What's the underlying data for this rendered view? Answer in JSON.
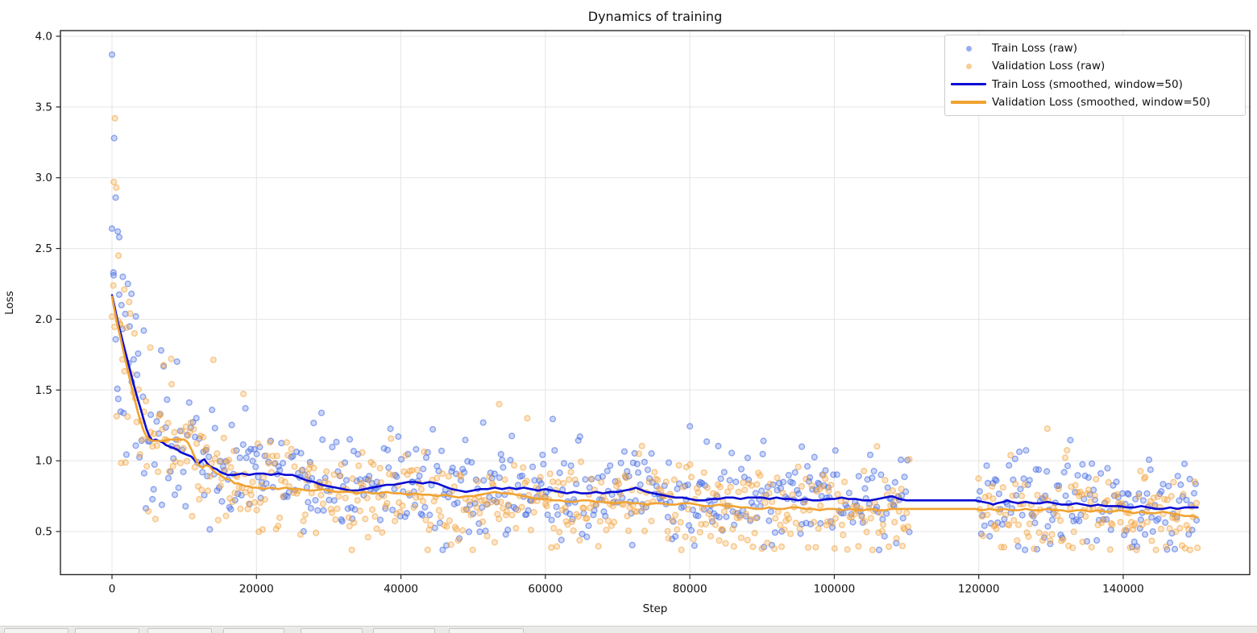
{
  "chart_data": {
    "type": "scatter",
    "title": "Dynamics of training",
    "xlabel": "Step",
    "ylabel": "Loss",
    "xlim": [
      -7150,
      157500
    ],
    "ylim": [
      0.19,
      4.04
    ],
    "x_ticks": [
      0,
      20000,
      40000,
      60000,
      80000,
      100000,
      120000,
      140000
    ],
    "y_ticks": [
      0.5,
      1.0,
      1.5,
      2.0,
      2.5,
      3.0,
      3.5,
      4.0
    ],
    "grid": true,
    "grid_color": "#e5e5e5",
    "axis_color": "#262626",
    "legend_position": "upper right",
    "data_gap_steps": [
      110500,
      119800
    ],
    "step_range": [
      0,
      150300
    ],
    "series": [
      {
        "name": "Train Loss (raw)",
        "type": "scatter",
        "color": "#4169e1",
        "alpha": 0.45,
        "marker": "circle",
        "envelope": "train_smoothed",
        "generator": {
          "seed": 42,
          "step_spacing": 215,
          "spread_base": 0.155,
          "spread_extra": 0.32,
          "spread_tau": 6500,
          "outlier_prob": 0.05,
          "outlier_scale": 0.4
        },
        "outlier_points": [
          [
            0,
            3.87
          ],
          [
            300,
            3.28
          ],
          [
            500,
            2.86
          ],
          [
            800,
            2.62
          ],
          [
            1000,
            2.58
          ],
          [
            200,
            2.33
          ],
          [
            1500,
            2.3
          ],
          [
            2200,
            2.25
          ],
          [
            2700,
            2.18
          ],
          [
            1300,
            2.1
          ],
          [
            3300,
            2.02
          ],
          [
            4400,
            1.92
          ],
          [
            6800,
            1.78
          ],
          [
            9000,
            1.7
          ],
          [
            51400,
            1.27
          ],
          [
            90200,
            1.14
          ],
          [
            95500,
            1.1
          ]
        ]
      },
      {
        "name": "Validation Loss (raw)",
        "type": "scatter",
        "color": "#f3a33c",
        "alpha": 0.45,
        "marker": "circle",
        "envelope": "valid_smoothed",
        "generator": {
          "seed": 1337,
          "step_spacing": 215,
          "spread_base": 0.155,
          "spread_extra": 0.32,
          "spread_tau": 6500,
          "outlier_prob": 0.05,
          "outlier_scale": 0.4
        },
        "outlier_points": [
          [
            400,
            3.42
          ],
          [
            250,
            2.97
          ],
          [
            600,
            2.93
          ],
          [
            900,
            2.45
          ],
          [
            1700,
            2.21
          ],
          [
            2500,
            2.04
          ],
          [
            1150,
            1.96
          ],
          [
            3100,
            1.9
          ],
          [
            5300,
            1.8
          ],
          [
            8200,
            1.72
          ],
          [
            53600,
            1.4
          ],
          [
            57500,
            1.3
          ]
        ]
      },
      {
        "name": "Train Loss (smoothed, window=50)",
        "type": "line",
        "color": "#0b0bd3",
        "width": 2.6,
        "key": "train_smoothed"
      },
      {
        "name": "Validation Loss (smoothed, window=50)",
        "type": "line",
        "color": "#f0a332",
        "width": 2.6,
        "key": "valid_smoothed"
      }
    ],
    "train_smoothed": [
      [
        0,
        2.17
      ],
      [
        400,
        2.08
      ],
      [
        800,
        1.98
      ],
      [
        1200,
        1.9
      ],
      [
        1600,
        1.82
      ],
      [
        2000,
        1.74
      ],
      [
        2400,
        1.66
      ],
      [
        2800,
        1.58
      ],
      [
        3200,
        1.5
      ],
      [
        3600,
        1.43
      ],
      [
        4000,
        1.36
      ],
      [
        4400,
        1.29
      ],
      [
        4800,
        1.22
      ],
      [
        5200,
        1.17
      ],
      [
        5600,
        1.14
      ],
      [
        6000,
        1.15
      ],
      [
        6500,
        1.14
      ],
      [
        7000,
        1.13
      ],
      [
        7500,
        1.11
      ],
      [
        8000,
        1.1
      ],
      [
        8500,
        1.09
      ],
      [
        9000,
        1.08
      ],
      [
        9500,
        1.06
      ],
      [
        10000,
        1.05
      ],
      [
        10500,
        1.04
      ],
      [
        11000,
        1.03
      ],
      [
        11500,
        1.0
      ],
      [
        12000,
        0.98
      ],
      [
        12400,
        1.0
      ],
      [
        12800,
        1.01
      ],
      [
        13200,
        0.98
      ],
      [
        13600,
        0.96
      ],
      [
        14000,
        0.95
      ],
      [
        14500,
        0.94
      ],
      [
        15000,
        0.92
      ],
      [
        15500,
        0.91
      ],
      [
        16000,
        0.9
      ],
      [
        17000,
        0.9
      ],
      [
        18000,
        0.91
      ],
      [
        19000,
        0.9
      ],
      [
        20000,
        0.91
      ],
      [
        21000,
        0.91
      ],
      [
        22000,
        0.9
      ],
      [
        23000,
        0.91
      ],
      [
        24000,
        0.9
      ],
      [
        25000,
        0.9
      ],
      [
        26000,
        0.88
      ],
      [
        27000,
        0.86
      ],
      [
        28000,
        0.85
      ],
      [
        29000,
        0.83
      ],
      [
        30000,
        0.82
      ],
      [
        31000,
        0.81
      ],
      [
        32000,
        0.8
      ],
      [
        33000,
        0.79
      ],
      [
        34000,
        0.79
      ],
      [
        35000,
        0.8
      ],
      [
        36000,
        0.81
      ],
      [
        37000,
        0.82
      ],
      [
        38000,
        0.83
      ],
      [
        39000,
        0.83
      ],
      [
        40000,
        0.84
      ],
      [
        41000,
        0.85
      ],
      [
        42000,
        0.85
      ],
      [
        43000,
        0.84
      ],
      [
        44000,
        0.85
      ],
      [
        45000,
        0.84
      ],
      [
        46000,
        0.82
      ],
      [
        47000,
        0.8
      ],
      [
        48000,
        0.79
      ],
      [
        49000,
        0.78
      ],
      [
        50000,
        0.79
      ],
      [
        51000,
        0.8
      ],
      [
        52000,
        0.8
      ],
      [
        53000,
        0.81
      ],
      [
        54000,
        0.8
      ],
      [
        55000,
        0.81
      ],
      [
        56000,
        0.8
      ],
      [
        57000,
        0.81
      ],
      [
        58000,
        0.8
      ],
      [
        59000,
        0.79
      ],
      [
        60000,
        0.8
      ],
      [
        61000,
        0.79
      ],
      [
        62000,
        0.78
      ],
      [
        63000,
        0.77
      ],
      [
        64000,
        0.78
      ],
      [
        65000,
        0.77
      ],
      [
        66000,
        0.77
      ],
      [
        67000,
        0.78
      ],
      [
        68000,
        0.77
      ],
      [
        69000,
        0.78
      ],
      [
        70000,
        0.78
      ],
      [
        71000,
        0.79
      ],
      [
        72000,
        0.8
      ],
      [
        72500,
        0.81
      ],
      [
        73000,
        0.8
      ],
      [
        74000,
        0.78
      ],
      [
        75000,
        0.77
      ],
      [
        76000,
        0.76
      ],
      [
        77000,
        0.75
      ],
      [
        78000,
        0.74
      ],
      [
        79000,
        0.74
      ],
      [
        80000,
        0.73
      ],
      [
        81000,
        0.72
      ],
      [
        82000,
        0.72
      ],
      [
        83000,
        0.73
      ],
      [
        84000,
        0.73
      ],
      [
        85000,
        0.74
      ],
      [
        86000,
        0.74
      ],
      [
        87000,
        0.73
      ],
      [
        88000,
        0.74
      ],
      [
        89000,
        0.74
      ],
      [
        90000,
        0.74
      ],
      [
        91000,
        0.73
      ],
      [
        92000,
        0.74
      ],
      [
        93000,
        0.73
      ],
      [
        94000,
        0.73
      ],
      [
        95000,
        0.72
      ],
      [
        96000,
        0.73
      ],
      [
        97000,
        0.72
      ],
      [
        98000,
        0.72
      ],
      [
        99000,
        0.73
      ],
      [
        100000,
        0.73
      ],
      [
        101000,
        0.74
      ],
      [
        102000,
        0.73
      ],
      [
        103000,
        0.73
      ],
      [
        104000,
        0.72
      ],
      [
        105000,
        0.72
      ],
      [
        106000,
        0.73
      ],
      [
        107000,
        0.74
      ],
      [
        108000,
        0.75
      ],
      [
        108500,
        0.74
      ],
      [
        109000,
        0.73
      ],
      [
        110000,
        0.72
      ],
      [
        119500,
        0.72
      ],
      [
        120500,
        0.71
      ],
      [
        121500,
        0.7
      ],
      [
        122000,
        0.69
      ],
      [
        122500,
        0.7
      ],
      [
        123500,
        0.71
      ],
      [
        124000,
        0.72
      ],
      [
        124500,
        0.71
      ],
      [
        125500,
        0.7
      ],
      [
        126500,
        0.71
      ],
      [
        127500,
        0.7
      ],
      [
        128500,
        0.7
      ],
      [
        129500,
        0.71
      ],
      [
        130500,
        0.7
      ],
      [
        131500,
        0.69
      ],
      [
        132500,
        0.69
      ],
      [
        133500,
        0.7
      ],
      [
        134500,
        0.69
      ],
      [
        135500,
        0.68
      ],
      [
        136500,
        0.69
      ],
      [
        137500,
        0.68
      ],
      [
        138500,
        0.68
      ],
      [
        139500,
        0.68
      ],
      [
        140500,
        0.67
      ],
      [
        141500,
        0.67
      ],
      [
        142500,
        0.68
      ],
      [
        143500,
        0.67
      ],
      [
        144500,
        0.66
      ],
      [
        145500,
        0.66
      ],
      [
        146500,
        0.67
      ],
      [
        147500,
        0.66
      ],
      [
        148500,
        0.67
      ],
      [
        149500,
        0.67
      ],
      [
        150300,
        0.67
      ]
    ],
    "valid_smoothed": [
      [
        0,
        2.16
      ],
      [
        400,
        2.05
      ],
      [
        800,
        1.95
      ],
      [
        1200,
        1.86
      ],
      [
        1600,
        1.77
      ],
      [
        2000,
        1.68
      ],
      [
        2400,
        1.59
      ],
      [
        2800,
        1.5
      ],
      [
        3200,
        1.42
      ],
      [
        3600,
        1.34
      ],
      [
        4000,
        1.27
      ],
      [
        4400,
        1.21
      ],
      [
        4800,
        1.17
      ],
      [
        5200,
        1.15
      ],
      [
        5600,
        1.14
      ],
      [
        6000,
        1.14
      ],
      [
        7000,
        1.14
      ],
      [
        8000,
        1.15
      ],
      [
        9000,
        1.15
      ],
      [
        10000,
        1.15
      ],
      [
        10500,
        1.13
      ],
      [
        11000,
        1.08
      ],
      [
        11500,
        1.02
      ],
      [
        12000,
        0.97
      ],
      [
        12500,
        0.95
      ],
      [
        13000,
        0.97
      ],
      [
        13500,
        0.96
      ],
      [
        14000,
        0.93
      ],
      [
        14500,
        0.91
      ],
      [
        15000,
        0.9
      ],
      [
        15500,
        0.88
      ],
      [
        16000,
        0.87
      ],
      [
        16500,
        0.86
      ],
      [
        17000,
        0.84
      ],
      [
        17500,
        0.84
      ],
      [
        18000,
        0.83
      ],
      [
        18500,
        0.82
      ],
      [
        19000,
        0.82
      ],
      [
        19500,
        0.81
      ],
      [
        20000,
        0.81
      ],
      [
        21000,
        0.8
      ],
      [
        22000,
        0.81
      ],
      [
        23000,
        0.8
      ],
      [
        24000,
        0.81
      ],
      [
        25000,
        0.8
      ],
      [
        26000,
        0.8
      ],
      [
        27000,
        0.79
      ],
      [
        28000,
        0.79
      ],
      [
        29000,
        0.8
      ],
      [
        30000,
        0.79
      ],
      [
        31000,
        0.78
      ],
      [
        32000,
        0.78
      ],
      [
        33000,
        0.78
      ],
      [
        34000,
        0.77
      ],
      [
        35000,
        0.78
      ],
      [
        36000,
        0.77
      ],
      [
        37000,
        0.77
      ],
      [
        38000,
        0.78
      ],
      [
        39000,
        0.77
      ],
      [
        40000,
        0.77
      ],
      [
        41000,
        0.76
      ],
      [
        42000,
        0.77
      ],
      [
        43000,
        0.76
      ],
      [
        44000,
        0.76
      ],
      [
        45000,
        0.75
      ],
      [
        46000,
        0.76
      ],
      [
        47000,
        0.75
      ],
      [
        48000,
        0.74
      ],
      [
        49000,
        0.75
      ],
      [
        50000,
        0.75
      ],
      [
        51000,
        0.76
      ],
      [
        52000,
        0.77
      ],
      [
        53000,
        0.78
      ],
      [
        54000,
        0.77
      ],
      [
        55000,
        0.77
      ],
      [
        56000,
        0.76
      ],
      [
        57000,
        0.75
      ],
      [
        58000,
        0.74
      ],
      [
        59000,
        0.73
      ],
      [
        60000,
        0.73
      ],
      [
        61000,
        0.72
      ],
      [
        62000,
        0.72
      ],
      [
        63000,
        0.71
      ],
      [
        64000,
        0.71
      ],
      [
        65000,
        0.72
      ],
      [
        66000,
        0.72
      ],
      [
        67000,
        0.71
      ],
      [
        68000,
        0.71
      ],
      [
        69000,
        0.7
      ],
      [
        70000,
        0.7
      ],
      [
        71000,
        0.71
      ],
      [
        72000,
        0.7
      ],
      [
        73000,
        0.7
      ],
      [
        74000,
        0.69
      ],
      [
        75000,
        0.7
      ],
      [
        76000,
        0.7
      ],
      [
        77000,
        0.69
      ],
      [
        78000,
        0.69
      ],
      [
        79000,
        0.7
      ],
      [
        80000,
        0.7
      ],
      [
        81000,
        0.69
      ],
      [
        82000,
        0.68
      ],
      [
        83000,
        0.68
      ],
      [
        84000,
        0.69
      ],
      [
        85000,
        0.68
      ],
      [
        86000,
        0.68
      ],
      [
        87000,
        0.67
      ],
      [
        88000,
        0.67
      ],
      [
        89000,
        0.66
      ],
      [
        90000,
        0.66
      ],
      [
        91000,
        0.67
      ],
      [
        92000,
        0.66
      ],
      [
        93000,
        0.66
      ],
      [
        94000,
        0.67
      ],
      [
        95000,
        0.67
      ],
      [
        96000,
        0.66
      ],
      [
        97000,
        0.66
      ],
      [
        98000,
        0.65
      ],
      [
        99000,
        0.66
      ],
      [
        100000,
        0.66
      ],
      [
        101000,
        0.65
      ],
      [
        102000,
        0.66
      ],
      [
        103000,
        0.65
      ],
      [
        104000,
        0.65
      ],
      [
        105000,
        0.66
      ],
      [
        106000,
        0.65
      ],
      [
        107000,
        0.65
      ],
      [
        108000,
        0.66
      ],
      [
        109000,
        0.66
      ],
      [
        110000,
        0.66
      ],
      [
        119500,
        0.66
      ],
      [
        120500,
        0.65
      ],
      [
        121500,
        0.66
      ],
      [
        122500,
        0.65
      ],
      [
        123500,
        0.66
      ],
      [
        124500,
        0.65
      ],
      [
        125500,
        0.65
      ],
      [
        126500,
        0.66
      ],
      [
        127500,
        0.65
      ],
      [
        128500,
        0.65
      ],
      [
        129500,
        0.66
      ],
      [
        130500,
        0.65
      ],
      [
        131500,
        0.65
      ],
      [
        132500,
        0.64
      ],
      [
        133500,
        0.65
      ],
      [
        134500,
        0.65
      ],
      [
        135500,
        0.64
      ],
      [
        136500,
        0.65
      ],
      [
        137500,
        0.64
      ],
      [
        138500,
        0.64
      ],
      [
        139500,
        0.65
      ],
      [
        140500,
        0.64
      ],
      [
        141500,
        0.63
      ],
      [
        142500,
        0.64
      ],
      [
        143500,
        0.63
      ],
      [
        144500,
        0.63
      ],
      [
        145500,
        0.64
      ],
      [
        146500,
        0.63
      ],
      [
        147500,
        0.62
      ],
      [
        148500,
        0.61
      ],
      [
        149500,
        0.61
      ],
      [
        150300,
        0.6
      ]
    ]
  },
  "toolbar": {
    "visible": true,
    "button_count": 7,
    "note": "row of window buttons cut off at bottom edge"
  }
}
